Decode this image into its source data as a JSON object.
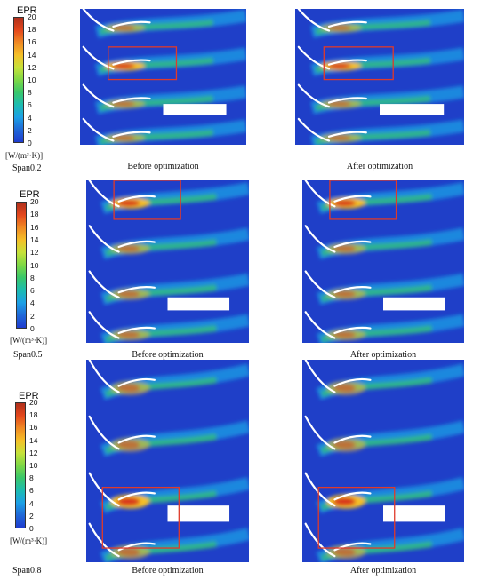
{
  "legend": {
    "title": "EPR",
    "ticks": [
      "20",
      "18",
      "16",
      "14",
      "12",
      "10",
      "8",
      "6",
      "4",
      "2",
      "0"
    ],
    "unit": "[W/(m³·K)]",
    "gradient": [
      "#b0301c",
      "#e4471c",
      "#f08a24",
      "#f5c028",
      "#c6e23a",
      "#7ed846",
      "#39c76a",
      "#1cbcb0",
      "#1ca0e6",
      "#1f68d8",
      "#1f3ccf"
    ]
  },
  "rows": [
    {
      "span_label": "Span0.2",
      "before_caption": "Before optimization",
      "after_caption": "After optimization"
    },
    {
      "span_label": "Span0.5",
      "before_caption": "Before optimization",
      "after_caption": "After optimization"
    },
    {
      "span_label": "Span0.8",
      "before_caption": "Before optimization",
      "after_caption": "After optimization"
    }
  ],
  "colors": {
    "background_field": "#1f3fc8",
    "highlight_box": "#e03a2a"
  }
}
